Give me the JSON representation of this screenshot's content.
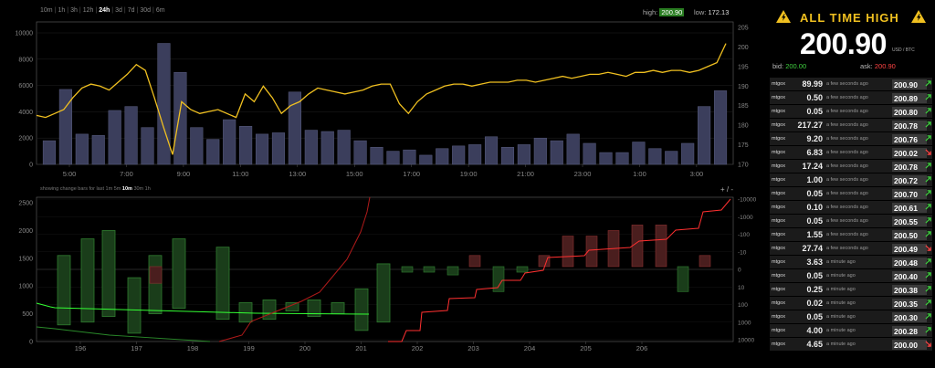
{
  "ranges": [
    "10m",
    "1h",
    "3h",
    "12h",
    "24h",
    "3d",
    "7d",
    "30d",
    "6m"
  ],
  "range_active": "24h",
  "high_label": "high:",
  "high_value": "200.90",
  "low_label": "low:",
  "low_value": "172.13",
  "change_bars_label": "showing change bars for last",
  "change_ranges": [
    "1m",
    "5m",
    "10m",
    "30m",
    "1h"
  ],
  "change_active": "10m",
  "plus_minus": "+ / -",
  "top_chart": {
    "y_left_ticks": [
      "0",
      "2000",
      "4000",
      "6000",
      "8000",
      "10000"
    ],
    "y_right_ticks": [
      "170",
      "175",
      "180",
      "185",
      "190",
      "195",
      "200",
      "205"
    ],
    "x_ticks": [
      "5:00",
      "7:00",
      "9:00",
      "11:00",
      "13:00",
      "15:00",
      "17:00",
      "19:00",
      "21:00",
      "23:00",
      "1:00",
      "3:00"
    ],
    "volume_bars": [
      1800,
      5700,
      2300,
      2200,
      4100,
      4400,
      2800,
      9200,
      7000,
      2800,
      1900,
      3400,
      2900,
      2300,
      2400,
      5500,
      2600,
      2500,
      2600,
      1800,
      1300,
      1000,
      1100,
      700,
      1200,
      1400,
      1500,
      2100,
      1300,
      1500,
      2000,
      1800,
      2300,
      1600,
      900,
      900,
      1700,
      1200,
      1000,
      1600,
      4400,
      5600
    ],
    "price_line": [
      182.5,
      182,
      183,
      184,
      187,
      189.5,
      190.5,
      190,
      189,
      191,
      193,
      195.5,
      194,
      187,
      179.5,
      172.5,
      186,
      184,
      183,
      183.5,
      184,
      183,
      182,
      188,
      186,
      190,
      187,
      183,
      185,
      186,
      188,
      189.5,
      189,
      188.5,
      188,
      188.5,
      189,
      190,
      190.5,
      190.5,
      185.5,
      183,
      186,
      188,
      189,
      190,
      190.5,
      190.5,
      190,
      190.5,
      191,
      191,
      191,
      191.5,
      191.5,
      191,
      191.5,
      192,
      192.5,
      192,
      192.5,
      193,
      193,
      193.5,
      193,
      192.5,
      193.5,
      193.5,
      194,
      193.5,
      194,
      194,
      193.5,
      194,
      195,
      196,
      200.9
    ],
    "line_color": "#f0c020",
    "bar_color": "#3b3e5c"
  },
  "bottom_chart": {
    "y_left_ticks": [
      "0",
      "500",
      "1000",
      "1500",
      "2000",
      "2500"
    ],
    "y_right_ticks": [
      "-10000",
      "-1000",
      "-100",
      "-10",
      "0",
      "10",
      "100",
      "1000",
      "10000"
    ],
    "x_ticks": [
      "196",
      "197",
      "198",
      "199",
      "200",
      "201",
      "202",
      "203",
      "204",
      "205",
      "206"
    ],
    "buy_bars": [
      [
        1550,
        300
      ],
      [
        1850,
        350
      ],
      [
        2000,
        450
      ],
      [
        1150,
        150
      ],
      [
        1550,
        500
      ],
      [
        1850,
        600
      ],
      [
        1700,
        400
      ],
      [
        700,
        350
      ],
      [
        750,
        400
      ],
      [
        700,
        550
      ],
      [
        750,
        450
      ],
      [
        700,
        500
      ],
      [
        950,
        200
      ],
      [
        1400,
        350
      ]
    ],
    "sell_bars": [
      [
        180,
        0
      ],
      [
        250,
        0
      ]
    ],
    "green_color": "#2a7a2a",
    "red_color": "#ff3030"
  },
  "ath": {
    "title": "ALL TIME HIGH",
    "price": "200.90",
    "unit": "USD / BTC",
    "bid_label": "bid:",
    "bid_value": "200.00",
    "ask_label": "ask:",
    "ask_value": "200.90"
  },
  "trades": [
    {
      "exchange": "mtgox",
      "amount": "89.99",
      "ago": "a few seconds ago",
      "price": "200.90",
      "dir": "up"
    },
    {
      "exchange": "mtgox",
      "amount": "0.50",
      "ago": "a few seconds ago",
      "price": "200.89",
      "dir": "up"
    },
    {
      "exchange": "mtgox",
      "amount": "0.05",
      "ago": "a few seconds ago",
      "price": "200.80",
      "dir": "up"
    },
    {
      "exchange": "mtgox",
      "amount": "217.27",
      "ago": "a few seconds ago",
      "price": "200.78",
      "dir": "up"
    },
    {
      "exchange": "mtgox",
      "amount": "9.20",
      "ago": "a few seconds ago",
      "price": "200.76",
      "dir": "up"
    },
    {
      "exchange": "mtgox",
      "amount": "6.83",
      "ago": "a few seconds ago",
      "price": "200.02",
      "dir": "down"
    },
    {
      "exchange": "mtgox",
      "amount": "17.24",
      "ago": "a few seconds ago",
      "price": "200.78",
      "dir": "up"
    },
    {
      "exchange": "mtgox",
      "amount": "1.00",
      "ago": "a few seconds ago",
      "price": "200.72",
      "dir": "up"
    },
    {
      "exchange": "mtgox",
      "amount": "0.05",
      "ago": "a few seconds ago",
      "price": "200.70",
      "dir": "up"
    },
    {
      "exchange": "mtgox",
      "amount": "0.10",
      "ago": "a few seconds ago",
      "price": "200.61",
      "dir": "up"
    },
    {
      "exchange": "mtgox",
      "amount": "0.05",
      "ago": "a few seconds ago",
      "price": "200.55",
      "dir": "up"
    },
    {
      "exchange": "mtgox",
      "amount": "1.55",
      "ago": "a few seconds ago",
      "price": "200.50",
      "dir": "up"
    },
    {
      "exchange": "mtgox",
      "amount": "27.74",
      "ago": "a few seconds ago",
      "price": "200.49",
      "dir": "down"
    },
    {
      "exchange": "mtgox",
      "amount": "3.63",
      "ago": "a minute ago",
      "price": "200.48",
      "dir": "up"
    },
    {
      "exchange": "mtgox",
      "amount": "0.05",
      "ago": "a minute ago",
      "price": "200.40",
      "dir": "up"
    },
    {
      "exchange": "mtgox",
      "amount": "0.25",
      "ago": "a minute ago",
      "price": "200.38",
      "dir": "up"
    },
    {
      "exchange": "mtgox",
      "amount": "0.02",
      "ago": "a minute ago",
      "price": "200.35",
      "dir": "up"
    },
    {
      "exchange": "mtgox",
      "amount": "0.05",
      "ago": "a minute ago",
      "price": "200.30",
      "dir": "up"
    },
    {
      "exchange": "mtgox",
      "amount": "4.00",
      "ago": "a minute ago",
      "price": "200.28",
      "dir": "up"
    },
    {
      "exchange": "mtgox",
      "amount": "4.65",
      "ago": "a minute ago",
      "price": "200.00",
      "dir": "down"
    }
  ]
}
